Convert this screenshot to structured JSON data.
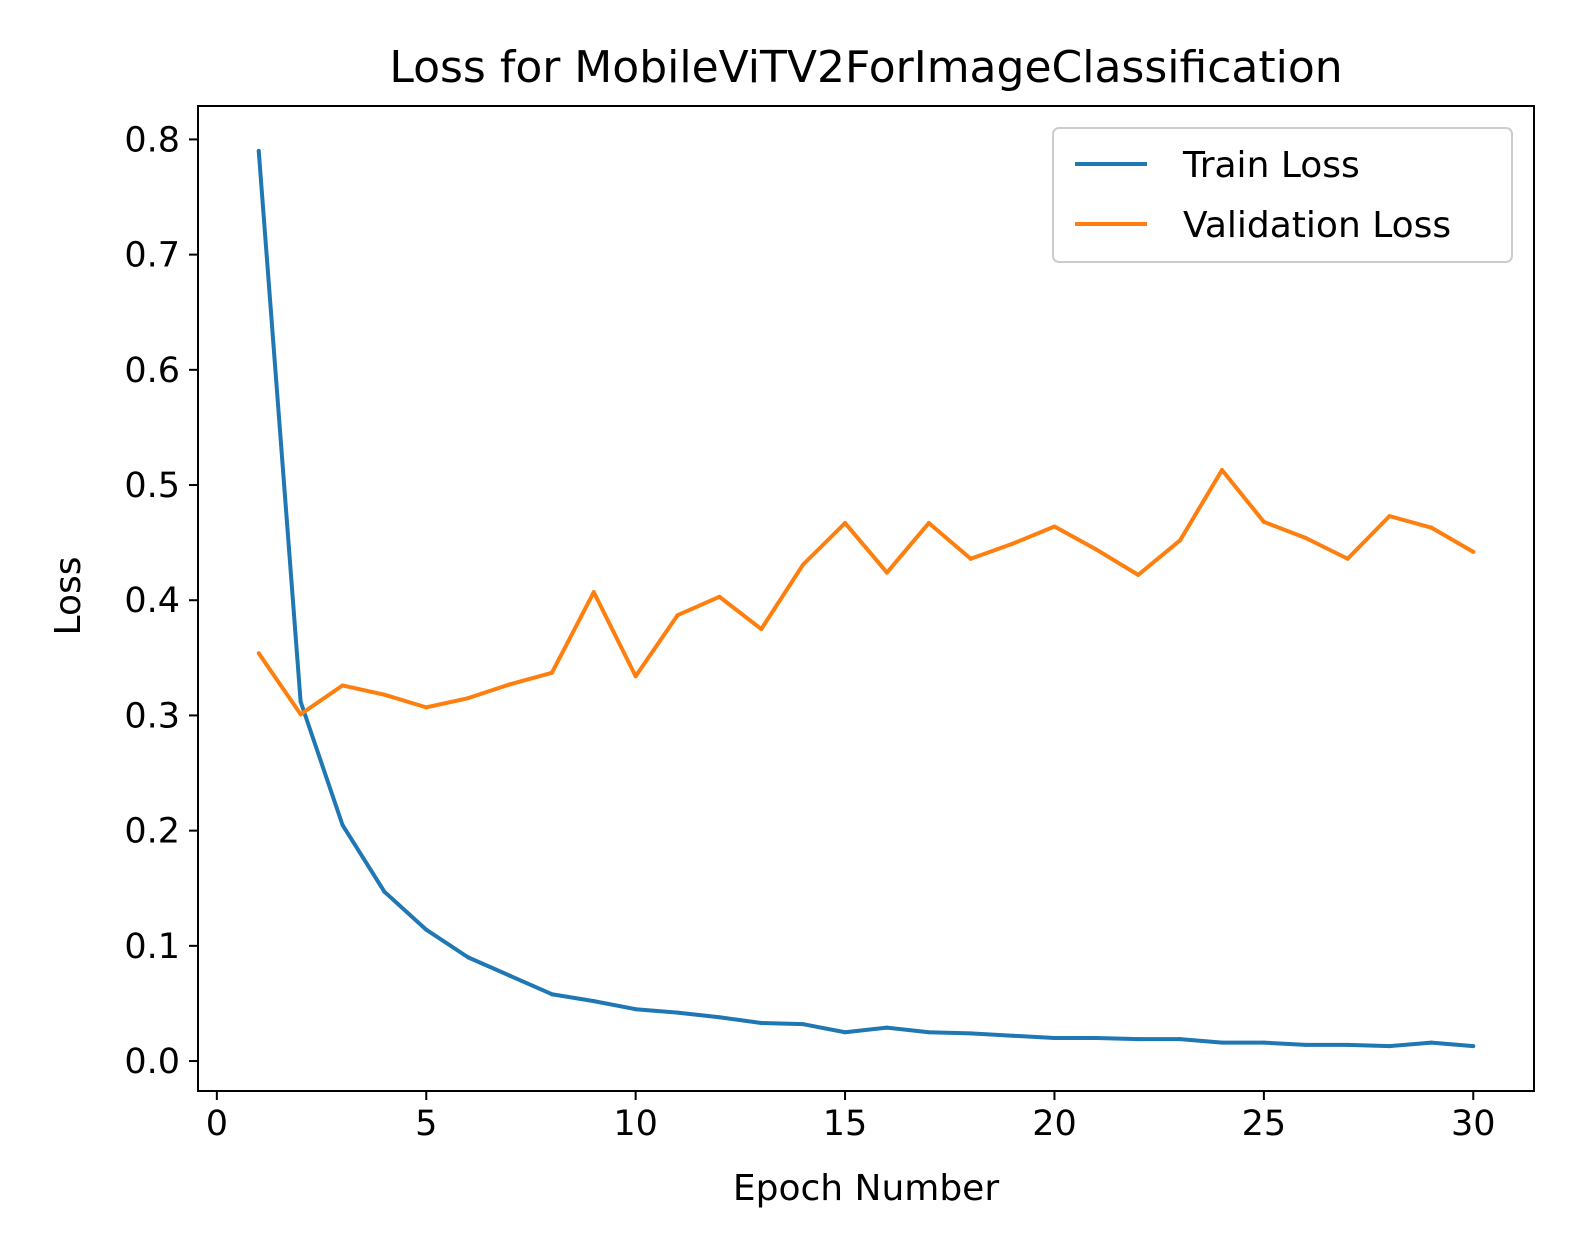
{
  "chart_data": {
    "type": "line",
    "title": "Loss for MobileViTV2ForImageClassification",
    "xlabel": "Epoch Number",
    "ylabel": "Loss",
    "xlim": [
      -0.45,
      31.45
    ],
    "ylim": [
      -0.026,
      0.829
    ],
    "xticks": [
      0,
      5,
      10,
      15,
      20,
      25,
      30
    ],
    "yticks": [
      0.0,
      0.1,
      0.2,
      0.3,
      0.4,
      0.5,
      0.6,
      0.7,
      0.8
    ],
    "xtick_labels": [
      "0",
      "5",
      "10",
      "15",
      "20",
      "25",
      "30"
    ],
    "ytick_labels": [
      "0.0",
      "0.1",
      "0.2",
      "0.3",
      "0.4",
      "0.5",
      "0.6",
      "0.7",
      "0.8"
    ],
    "grid": false,
    "legend_position": "top-right",
    "x": [
      1,
      2,
      3,
      4,
      5,
      6,
      7,
      8,
      9,
      10,
      11,
      12,
      13,
      14,
      15,
      16,
      17,
      18,
      19,
      20,
      21,
      22,
      23,
      24,
      25,
      26,
      27,
      28,
      29,
      30
    ],
    "series": [
      {
        "name": "Train Loss",
        "color": "#1f77b4",
        "values": [
          0.79,
          0.312,
          0.205,
          0.147,
          0.114,
          0.09,
          0.074,
          0.058,
          0.052,
          0.045,
          0.042,
          0.038,
          0.033,
          0.032,
          0.025,
          0.029,
          0.025,
          0.024,
          0.022,
          0.02,
          0.02,
          0.019,
          0.019,
          0.016,
          0.016,
          0.014,
          0.014,
          0.013,
          0.016,
          0.013
        ]
      },
      {
        "name": "Validation Loss",
        "color": "#ff7f0e",
        "values": [
          0.354,
          0.301,
          0.326,
          0.318,
          0.307,
          0.315,
          0.327,
          0.337,
          0.407,
          0.334,
          0.387,
          0.403,
          0.375,
          0.431,
          0.467,
          0.424,
          0.467,
          0.436,
          0.449,
          0.464,
          0.444,
          0.422,
          0.452,
          0.513,
          0.468,
          0.454,
          0.436,
          0.473,
          0.463,
          0.442
        ]
      }
    ]
  }
}
